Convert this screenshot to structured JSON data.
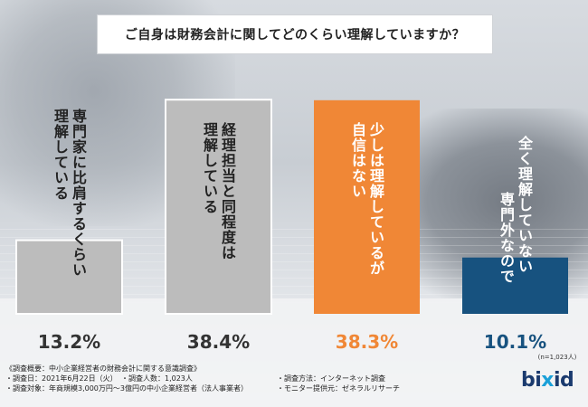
{
  "question": "ご自身は財務会計に関してどのくらい理解していますか？",
  "sample_note": "(n=1,023人)",
  "chart_data": {
    "type": "bar",
    "categories": [
      [
        "専門家に比肩するくらい",
        "理解している"
      ],
      [
        "経理担当と同程度は",
        "理解している"
      ],
      [
        "少しは理解しているが",
        "自信はない"
      ],
      [
        "全く理解していない",
        "専門外なので"
      ]
    ],
    "values": [
      13.2,
      38.4,
      38.3,
      10.1
    ],
    "value_labels": [
      "13.2%",
      "38.4%",
      "38.3%",
      "10.1%"
    ],
    "unit": "%",
    "ylim": [
      0,
      42
    ],
    "colors": [
      "#bcbcbc",
      "#bcbcbc",
      "#f08736",
      "#17527f"
    ],
    "value_label_colors": [
      "#333333",
      "#333333",
      "#f08736",
      "#17527f"
    ]
  },
  "footnotes": {
    "overview": "《調査概要：中小企業経営者の財務会計に関する意識調査》",
    "date": "・調査日：2021年6月22日（火）",
    "respondents": "・調査人数：1,023人",
    "method": "・調査方法：インターネット調査",
    "target": "・調査対象：年商規模3,000万円〜3億円の中小企業経営者（法人事業者）",
    "provider": "・モニター提供元：ゼネラルリサーチ"
  },
  "logo": {
    "left": "bi",
    "mark": "x",
    "right": "id"
  }
}
